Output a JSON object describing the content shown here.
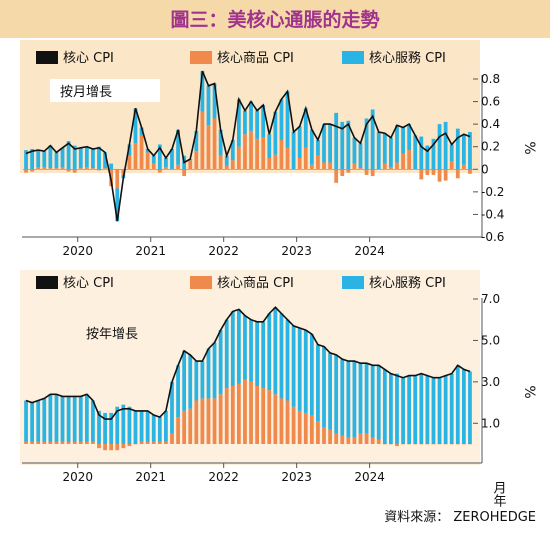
{
  "title": "圖三：美核心通脹的走勢",
  "source": "資料來源： ZEROHEDGE",
  "colors": {
    "title_band": "#f6d9a8",
    "title_text": "#a0348d",
    "top_panel_bg": "#fbe6c8",
    "bottom_panel_bg": "#fdf0df",
    "core": "#111111",
    "goods": "#f08a4c",
    "services": "#29b4e4"
  },
  "legend": {
    "core": "核心 CPI",
    "goods": "核心商品 CPI",
    "services": "核心服務 CPI"
  },
  "chart_data": [
    {
      "type": "bar",
      "subtype": "stacked bars with line overlay",
      "panel_label": "按月增長",
      "ylabel": "%",
      "ylim": [
        -0.6,
        0.8
      ],
      "yticks": [
        -0.6,
        -0.4,
        -0.2,
        0,
        0.2,
        0.4,
        0.6,
        0.8
      ],
      "ytick_labels": [
        "-0.6",
        "-0.4",
        "-0.2",
        "0",
        "0.2",
        "0.4",
        "0.6",
        "0.8"
      ],
      "xtick_labels": [
        "2020",
        "2021",
        "2022",
        "2023",
        "2024"
      ],
      "start_month": "2019-04",
      "series": [
        {
          "name": "核心 CPI",
          "type": "line",
          "values": [
            0.14,
            0.16,
            0.17,
            0.16,
            0.21,
            0.15,
            0.19,
            0.23,
            0.18,
            0.19,
            0.2,
            0.18,
            0.19,
            0.15,
            -0.1,
            -0.46,
            -0.08,
            0.22,
            0.54,
            0.37,
            0.18,
            0.12,
            0.19,
            0.1,
            0.18,
            0.35,
            0.06,
            0.09,
            0.34,
            0.87,
            0.74,
            0.76,
            0.35,
            0.12,
            0.26,
            0.62,
            0.52,
            0.6,
            0.52,
            0.57,
            0.31,
            0.51,
            0.62,
            0.69,
            0.33,
            0.38,
            0.54,
            0.35,
            0.26,
            0.4,
            0.4,
            0.38,
            0.36,
            0.4,
            0.28,
            0.23,
            0.4,
            0.47,
            0.33,
            0.32,
            0.28,
            0.39,
            0.37,
            0.4,
            0.3,
            0.2,
            0.16,
            0.22,
            0.29,
            0.32,
            0.22,
            0.28,
            0.31,
            0.29
          ]
        },
        {
          "name": "核心商品 CPI",
          "type": "bar",
          "values": [
            -0.03,
            -0.02,
            0.02,
            0.02,
            0.01,
            0.01,
            0.02,
            -0.02,
            -0.03,
            0.01,
            0.02,
            0.01,
            -0.01,
            0.01,
            -0.15,
            -0.17,
            -0.05,
            0.12,
            0.23,
            0.3,
            0.15,
            0.05,
            -0.03,
            0.02,
            0.0,
            0.04,
            -0.06,
            0.08,
            0.16,
            0.51,
            0.39,
            0.45,
            0.12,
            0.03,
            0.08,
            0.2,
            0.31,
            0.34,
            0.27,
            0.28,
            0.1,
            0.13,
            0.26,
            0.19,
            0.0,
            0.1,
            0.19,
            0.04,
            0.12,
            0.06,
            0.06,
            -0.12,
            -0.06,
            -0.03,
            0.05,
            0.01,
            -0.05,
            -0.06,
            0.0,
            0.05,
            0.02,
            0.06,
            0.14,
            0.17,
            0.0,
            -0.09,
            -0.05,
            -0.05,
            -0.11,
            -0.1,
            0.07,
            -0.08,
            0.04,
            -0.04
          ]
        },
        {
          "name": "核心服務 CPI",
          "type": "bar",
          "values": [
            0.17,
            0.18,
            0.15,
            0.14,
            0.2,
            0.14,
            0.17,
            0.25,
            0.21,
            0.18,
            0.18,
            0.17,
            0.2,
            0.14,
            0.05,
            -0.29,
            -0.03,
            0.1,
            0.31,
            0.07,
            0.03,
            0.07,
            0.22,
            0.08,
            0.18,
            0.31,
            0.12,
            0.01,
            0.18,
            0.36,
            0.35,
            0.31,
            0.23,
            0.09,
            0.18,
            0.42,
            0.21,
            0.26,
            0.25,
            0.29,
            0.21,
            0.38,
            0.36,
            0.5,
            0.33,
            0.28,
            0.35,
            0.31,
            0.14,
            0.34,
            0.34,
            0.5,
            0.42,
            0.43,
            0.23,
            0.22,
            0.45,
            0.53,
            0.33,
            0.27,
            0.26,
            0.33,
            0.23,
            0.23,
            0.3,
            0.29,
            0.21,
            0.27,
            0.4,
            0.42,
            0.15,
            0.36,
            0.27,
            0.33
          ]
        }
      ]
    },
    {
      "type": "bar",
      "subtype": "stacked bars with line overlay",
      "panel_label": "按年增長",
      "ylabel": "%",
      "xlabel": "月年",
      "ylim": [
        0,
        7
      ],
      "yticks": [
        1,
        3,
        5,
        7
      ],
      "ytick_labels": [
        "1.0",
        "3.0",
        "5.0",
        "7.0"
      ],
      "xtick_labels": [
        "2020",
        "2021",
        "2022",
        "2023",
        "2024"
      ],
      "start_month": "2019-04",
      "series": [
        {
          "name": "核心 CPI",
          "type": "line",
          "values": [
            2.1,
            2.0,
            2.1,
            2.2,
            2.4,
            2.4,
            2.3,
            2.3,
            2.3,
            2.3,
            2.4,
            2.1,
            1.4,
            1.2,
            1.2,
            1.6,
            1.7,
            1.7,
            1.6,
            1.6,
            1.6,
            1.4,
            1.3,
            1.6,
            3.0,
            3.8,
            4.5,
            4.3,
            4.0,
            4.0,
            4.6,
            4.9,
            5.5,
            6.0,
            6.4,
            6.5,
            6.2,
            6.0,
            5.9,
            5.9,
            6.3,
            6.6,
            6.3,
            6.0,
            5.7,
            5.6,
            5.5,
            5.3,
            4.8,
            4.7,
            4.4,
            4.3,
            4.1,
            4.0,
            4.0,
            3.9,
            3.9,
            3.8,
            3.8,
            3.6,
            3.4,
            3.3,
            3.2,
            3.3,
            3.3,
            3.4,
            3.3,
            3.2,
            3.2,
            3.3,
            3.4,
            3.8,
            3.6,
            3.5
          ]
        },
        {
          "name": "核心商品 CPI",
          "type": "bar",
          "values": [
            0.1,
            0.1,
            0.1,
            0.1,
            0.1,
            0.1,
            0.1,
            0.1,
            0.1,
            0.1,
            0.1,
            0.1,
            -0.2,
            -0.3,
            -0.3,
            -0.3,
            -0.2,
            -0.1,
            0.0,
            0.1,
            0.1,
            0.1,
            0.1,
            0.1,
            0.5,
            1.3,
            1.6,
            1.7,
            2.1,
            2.2,
            2.2,
            2.2,
            2.4,
            2.7,
            2.8,
            2.9,
            3.1,
            3.0,
            2.8,
            2.7,
            2.6,
            2.4,
            2.2,
            2.1,
            1.8,
            1.6,
            1.5,
            1.4,
            1.1,
            0.8,
            0.7,
            0.5,
            0.4,
            0.3,
            0.3,
            0.5,
            0.5,
            0.3,
            0.2,
            0.0,
            0.0,
            -0.1,
            0.0,
            0.0,
            0.0,
            0.0,
            0.0,
            0.0,
            0.0,
            0.0,
            0.0,
            0.0,
            0.0,
            0.0
          ]
        },
        {
          "name": "核心服務 CPI",
          "type": "bar",
          "values": [
            2.0,
            1.9,
            2.0,
            2.1,
            2.3,
            2.3,
            2.2,
            2.2,
            2.2,
            2.2,
            2.3,
            2.0,
            1.6,
            1.5,
            1.5,
            1.8,
            1.9,
            1.8,
            1.6,
            1.5,
            1.5,
            1.3,
            1.2,
            1.5,
            2.5,
            2.5,
            2.9,
            2.6,
            1.9,
            1.8,
            2.4,
            2.7,
            3.1,
            3.3,
            3.6,
            3.6,
            3.1,
            3.0,
            3.1,
            3.2,
            3.7,
            4.2,
            4.1,
            3.9,
            3.9,
            4.0,
            4.0,
            3.9,
            3.7,
            3.9,
            3.7,
            3.8,
            3.7,
            3.7,
            3.7,
            3.4,
            3.4,
            3.5,
            3.6,
            3.6,
            3.4,
            3.4,
            3.2,
            3.3,
            3.3,
            3.4,
            3.3,
            3.2,
            3.2,
            3.3,
            3.4,
            3.8,
            3.6,
            3.5
          ]
        }
      ]
    }
  ]
}
